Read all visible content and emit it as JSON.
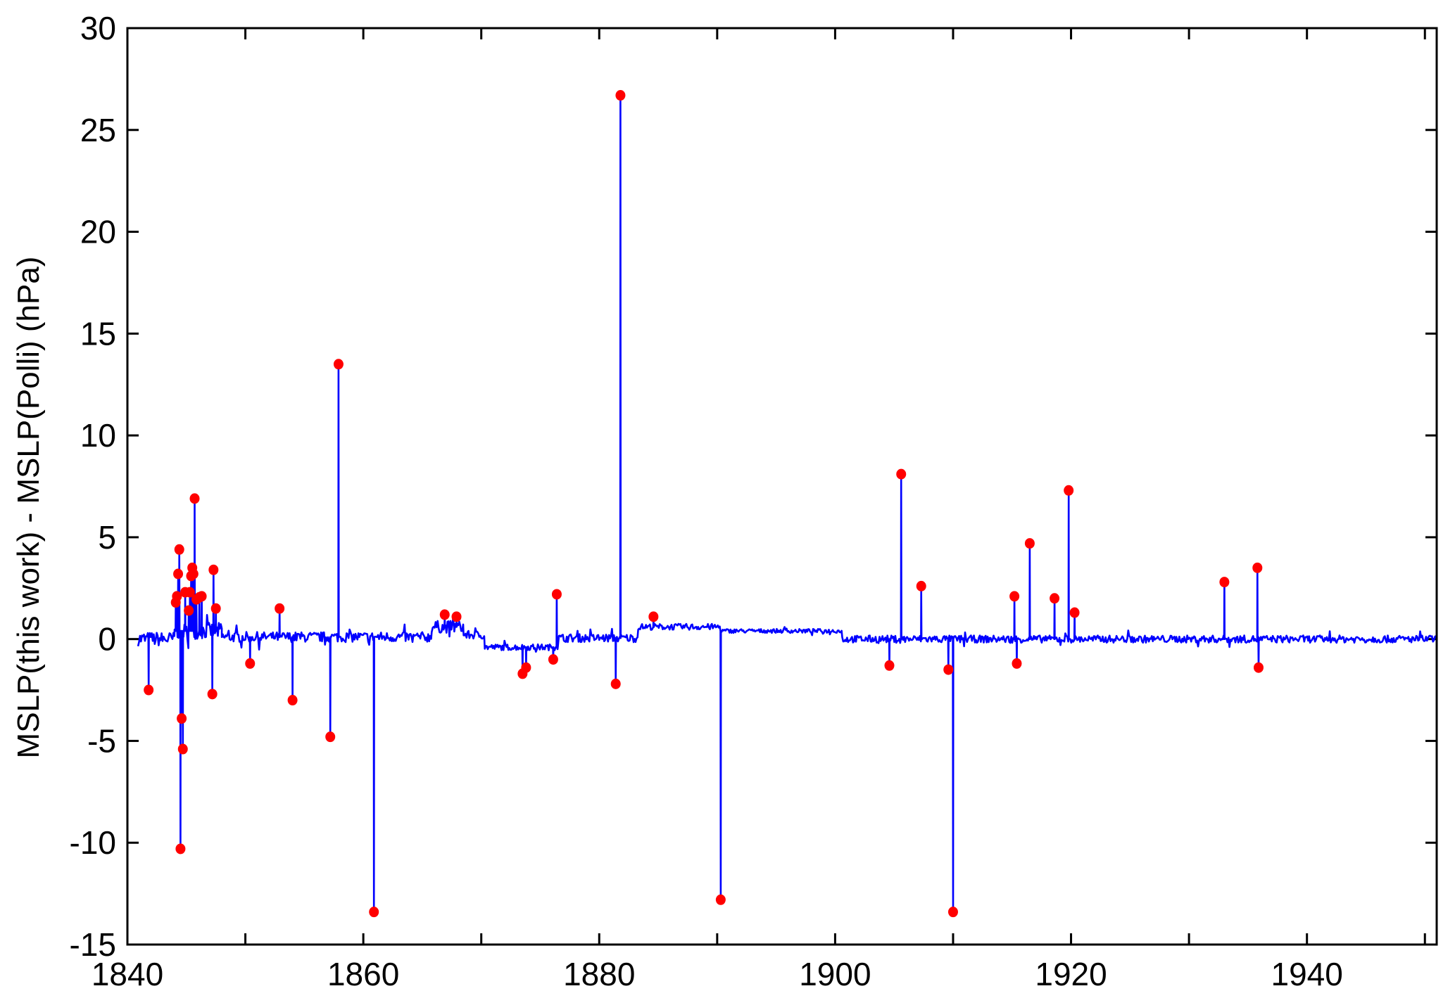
{
  "chart_data": {
    "type": "line",
    "title": "",
    "xlabel": "",
    "ylabel": "MSLP(this work) - MSLP(Polli) (hPa)",
    "xlim": [
      1840,
      1951
    ],
    "ylim": [
      -15,
      30
    ],
    "x_ticks": [
      1840,
      1850,
      1860,
      1870,
      1880,
      1890,
      1900,
      1910,
      1920,
      1930,
      1940,
      1950
    ],
    "x_tick_labels": [
      "1840",
      "",
      "1860",
      "",
      "1880",
      "",
      "1900",
      "",
      "1920",
      "",
      "1940",
      ""
    ],
    "y_ticks": [
      -15,
      -10,
      -5,
      0,
      5,
      10,
      15,
      20,
      25,
      30
    ],
    "y_tick_labels": [
      "-15",
      "-10",
      "-5",
      "0",
      "5",
      "10",
      "15",
      "20",
      "25",
      "30"
    ],
    "grid": false,
    "colors": {
      "line": "#0000ff",
      "flagged": "#ff0000",
      "axis": "#000000"
    },
    "baseline_segments": [
      {
        "start": 1840.9,
        "end": 1844.0,
        "level": 0.0,
        "noise": 0.35
      },
      {
        "start": 1844.0,
        "end": 1848.0,
        "level": 0.4,
        "noise": 0.4
      },
      {
        "start": 1848.0,
        "end": 1865.8,
        "level": 0.1,
        "noise": 0.25
      },
      {
        "start": 1865.8,
        "end": 1868.5,
        "level": 0.6,
        "noise": 0.3
      },
      {
        "start": 1868.5,
        "end": 1870.3,
        "level": 0.2,
        "noise": 0.2
      },
      {
        "start": 1870.3,
        "end": 1876.5,
        "level": -0.4,
        "noise": 0.15
      },
      {
        "start": 1876.5,
        "end": 1883.3,
        "level": 0.05,
        "noise": 0.2
      },
      {
        "start": 1883.3,
        "end": 1890.3,
        "level": 0.6,
        "noise": 0.15
      },
      {
        "start": 1890.3,
        "end": 1900.6,
        "level": 0.4,
        "noise": 0.1
      },
      {
        "start": 1900.6,
        "end": 1951.0,
        "level": 0.0,
        "noise": 0.18
      }
    ],
    "flagged_points": [
      {
        "x": 1841.8,
        "y": -2.5
      },
      {
        "x": 1844.1,
        "y": 1.8
      },
      {
        "x": 1844.2,
        "y": 2.1
      },
      {
        "x": 1844.3,
        "y": 3.2
      },
      {
        "x": 1844.4,
        "y": 4.4
      },
      {
        "x": 1844.5,
        "y": -10.3
      },
      {
        "x": 1844.6,
        "y": -3.9
      },
      {
        "x": 1844.7,
        "y": -5.4
      },
      {
        "x": 1844.9,
        "y": 2.3
      },
      {
        "x": 1845.2,
        "y": 1.4
      },
      {
        "x": 1845.3,
        "y": 2.3
      },
      {
        "x": 1845.4,
        "y": 3.1
      },
      {
        "x": 1845.5,
        "y": 3.5
      },
      {
        "x": 1845.6,
        "y": 3.2
      },
      {
        "x": 1845.7,
        "y": 6.9
      },
      {
        "x": 1845.85,
        "y": 1.95
      },
      {
        "x": 1846.1,
        "y": 2.05
      },
      {
        "x": 1846.3,
        "y": 2.1
      },
      {
        "x": 1847.2,
        "y": -2.7
      },
      {
        "x": 1847.3,
        "y": 3.4
      },
      {
        "x": 1847.5,
        "y": 1.5
      },
      {
        "x": 1850.4,
        "y": -1.2
      },
      {
        "x": 1852.9,
        "y": 1.5
      },
      {
        "x": 1854.0,
        "y": -3.0
      },
      {
        "x": 1857.2,
        "y": -4.8
      },
      {
        "x": 1857.9,
        "y": 13.5
      },
      {
        "x": 1860.9,
        "y": -13.4
      },
      {
        "x": 1866.9,
        "y": 1.2
      },
      {
        "x": 1867.9,
        "y": 1.1
      },
      {
        "x": 1873.5,
        "y": -1.7
      },
      {
        "x": 1873.8,
        "y": -1.4
      },
      {
        "x": 1876.1,
        "y": -1.0
      },
      {
        "x": 1876.4,
        "y": 2.2
      },
      {
        "x": 1881.4,
        "y": -2.2
      },
      {
        "x": 1881.8,
        "y": 26.7
      },
      {
        "x": 1884.6,
        "y": 1.1
      },
      {
        "x": 1890.3,
        "y": -12.8
      },
      {
        "x": 1904.6,
        "y": -1.3
      },
      {
        "x": 1905.6,
        "y": 8.1
      },
      {
        "x": 1907.3,
        "y": 2.6
      },
      {
        "x": 1909.6,
        "y": -1.5
      },
      {
        "x": 1910.0,
        "y": -13.4
      },
      {
        "x": 1915.2,
        "y": 2.1
      },
      {
        "x": 1915.4,
        "y": -1.2
      },
      {
        "x": 1916.5,
        "y": 4.7
      },
      {
        "x": 1918.6,
        "y": 2.0
      },
      {
        "x": 1919.8,
        "y": 7.3
      },
      {
        "x": 1920.3,
        "y": 1.3
      },
      {
        "x": 1933.0,
        "y": 2.8
      },
      {
        "x": 1935.8,
        "y": 3.5
      },
      {
        "x": 1935.9,
        "y": -1.4
      }
    ]
  }
}
